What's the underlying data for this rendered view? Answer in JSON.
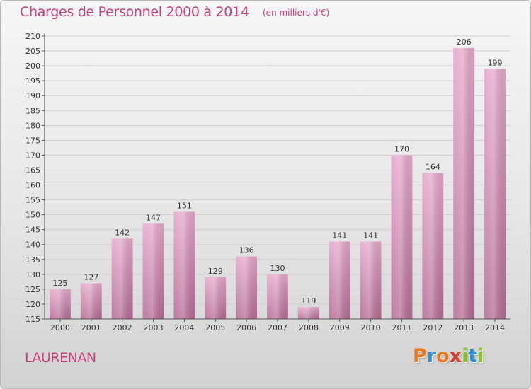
{
  "header": {
    "title": "Charges de Personnel 2000 à 2014",
    "subtitle": "(en milliers d'€)"
  },
  "commune": "LAURENAN",
  "logo": {
    "text": "Proxiti",
    "letters": [
      {
        "ch": "P",
        "color": "#e8761e"
      },
      {
        "ch": "r",
        "color": "#2f8fd1"
      },
      {
        "ch": "o",
        "color": "#e8761e"
      },
      {
        "ch": "x",
        "color": "#d53c2d"
      },
      {
        "ch": "i",
        "color": "#8cbd2a"
      },
      {
        "ch": "t",
        "color": "#2f8fd1"
      },
      {
        "ch": "i",
        "color": "#8cbd2a"
      }
    ]
  },
  "chart_data": {
    "type": "bar",
    "categories": [
      "2000",
      "2001",
      "2002",
      "2003",
      "2004",
      "2005",
      "2006",
      "2007",
      "2008",
      "2009",
      "2010",
      "2011",
      "2012",
      "2013",
      "2014"
    ],
    "values": [
      125,
      127,
      142,
      147,
      151,
      129,
      136,
      130,
      119,
      141,
      141,
      170,
      164,
      206,
      199
    ],
    "ylim": [
      115,
      210
    ],
    "yticks": [
      115,
      120,
      125,
      130,
      135,
      140,
      145,
      150,
      155,
      160,
      165,
      170,
      175,
      180,
      185,
      190,
      195,
      200,
      205,
      210
    ],
    "grid": true,
    "data_labels": true,
    "bar_color": "#d98cb5",
    "bar_color_dark": "#b0668f",
    "axis_color": "#555555"
  }
}
